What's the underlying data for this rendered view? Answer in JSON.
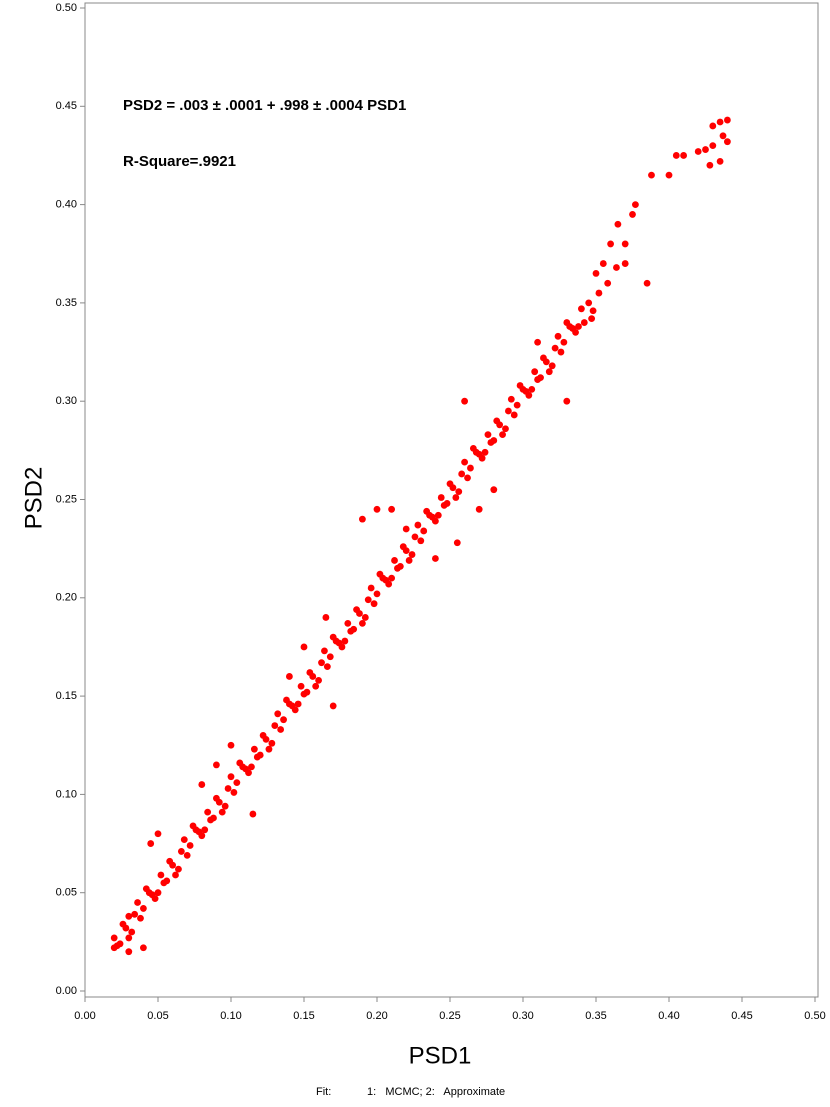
{
  "chart_data": {
    "type": "scatter",
    "color": "#ff0000",
    "annotations": [
      "PSD2 = .003 ± .0001 + .998 ± .0004 PSD1",
      "R-Square=.9921"
    ],
    "xlabel": "PSD1",
    "ylabel": "PSD2",
    "footnote": {
      "label": "Fit:",
      "text": "1:   MCMC; 2:   Approximate"
    },
    "xlim": [
      0,
      0.5
    ],
    "ylim": [
      0,
      0.5
    ],
    "xticks": [
      {
        "value": 0,
        "label": "0.00"
      },
      {
        "value": 0.05,
        "label": "0.05"
      },
      {
        "value": 0.1,
        "label": "0.10"
      },
      {
        "value": 0.15,
        "label": "0.15"
      },
      {
        "value": 0.2,
        "label": "0.20"
      },
      {
        "value": 0.25,
        "label": "0.25"
      },
      {
        "value": 0.3,
        "label": "0.30"
      },
      {
        "value": 0.35,
        "label": "0.35"
      },
      {
        "value": 0.4,
        "label": "0.40"
      },
      {
        "value": 0.45,
        "label": "0.45"
      },
      {
        "value": 0.5,
        "label": "0.50"
      }
    ],
    "yticks": [
      {
        "value": 0,
        "label": "0.00"
      },
      {
        "value": 0.05,
        "label": "0.05"
      },
      {
        "value": 0.1,
        "label": "0.10"
      },
      {
        "value": 0.15,
        "label": "0.15"
      },
      {
        "value": 0.2,
        "label": "0.20"
      },
      {
        "value": 0.25,
        "label": "0.25"
      },
      {
        "value": 0.3,
        "label": "0.30"
      },
      {
        "value": 0.35,
        "label": "0.35"
      },
      {
        "value": 0.4,
        "label": "0.40"
      },
      {
        "value": 0.45,
        "label": "0.45"
      },
      {
        "value": 0.5,
        "label": "0.50"
      }
    ],
    "x": [
      0.02,
      0.024,
      0.028,
      0.032,
      0.036,
      0.04,
      0.044,
      0.048,
      0.052,
      0.056,
      0.06,
      0.064,
      0.068,
      0.072,
      0.076,
      0.08,
      0.084,
      0.088,
      0.092,
      0.096,
      0.1,
      0.104,
      0.108,
      0.112,
      0.116,
      0.12,
      0.124,
      0.128,
      0.132,
      0.136,
      0.14,
      0.144,
      0.148,
      0.152,
      0.156,
      0.16,
      0.164,
      0.168,
      0.172,
      0.176,
      0.18,
      0.184,
      0.188,
      0.192,
      0.196,
      0.2,
      0.204,
      0.208,
      0.212,
      0.216,
      0.22,
      0.224,
      0.228,
      0.232,
      0.236,
      0.24,
      0.244,
      0.248,
      0.252,
      0.256,
      0.26,
      0.264,
      0.268,
      0.272,
      0.276,
      0.28,
      0.284,
      0.288,
      0.292,
      0.296,
      0.3,
      0.304,
      0.308,
      0.312,
      0.316,
      0.32,
      0.324,
      0.328,
      0.332,
      0.336,
      0.34,
      0.022,
      0.026,
      0.03,
      0.034,
      0.038,
      0.042,
      0.046,
      0.05,
      0.054,
      0.058,
      0.062,
      0.066,
      0.07,
      0.074,
      0.078,
      0.082,
      0.086,
      0.09,
      0.094,
      0.098,
      0.102,
      0.106,
      0.11,
      0.114,
      0.118,
      0.122,
      0.126,
      0.13,
      0.134,
      0.138,
      0.142,
      0.146,
      0.15,
      0.154,
      0.158,
      0.162,
      0.166,
      0.17,
      0.174,
      0.178,
      0.182,
      0.186,
      0.19,
      0.194,
      0.198,
      0.202,
      0.206,
      0.21,
      0.214,
      0.218,
      0.222,
      0.226,
      0.23,
      0.234,
      0.238,
      0.242,
      0.246,
      0.25,
      0.254,
      0.258,
      0.262,
      0.266,
      0.27,
      0.274,
      0.278,
      0.282,
      0.286,
      0.29,
      0.294,
      0.298,
      0.302,
      0.306,
      0.31,
      0.314,
      0.318,
      0.322,
      0.326,
      0.33,
      0.334,
      0.338,
      0.43,
      0.435,
      0.44,
      0.437,
      0.44,
      0.43,
      0.425,
      0.435,
      0.428,
      0.405,
      0.41,
      0.42,
      0.4,
      0.388,
      0.377,
      0.375,
      0.365,
      0.37,
      0.385,
      0.36,
      0.355,
      0.35,
      0.345,
      0.358,
      0.364,
      0.37,
      0.352,
      0.348,
      0.342,
      0.347,
      0.2,
      0.21,
      0.22,
      0.24,
      0.19,
      0.165,
      0.17,
      0.15,
      0.14,
      0.09,
      0.115,
      0.05,
      0.045,
      0.04,
      0.03,
      0.02,
      0.03,
      0.255,
      0.27,
      0.1,
      0.08,
      0.31,
      0.33,
      0.26,
      0.28
    ],
    "values": [
      0.027,
      0.024,
      0.032,
      0.03,
      0.045,
      0.042,
      0.05,
      0.047,
      0.059,
      0.056,
      0.064,
      0.062,
      0.077,
      0.074,
      0.082,
      0.079,
      0.091,
      0.088,
      0.096,
      0.094,
      0.109,
      0.106,
      0.114,
      0.111,
      0.123,
      0.12,
      0.128,
      0.126,
      0.141,
      0.138,
      0.146,
      0.143,
      0.155,
      0.152,
      0.16,
      0.158,
      0.173,
      0.17,
      0.178,
      0.175,
      0.187,
      0.184,
      0.192,
      0.19,
      0.205,
      0.202,
      0.21,
      0.207,
      0.219,
      0.216,
      0.224,
      0.222,
      0.237,
      0.234,
      0.242,
      0.239,
      0.251,
      0.248,
      0.256,
      0.254,
      0.269,
      0.266,
      0.274,
      0.271,
      0.283,
      0.28,
      0.288,
      0.286,
      0.301,
      0.298,
      0.306,
      0.303,
      0.315,
      0.312,
      0.32,
      0.318,
      0.333,
      0.33,
      0.338,
      0.335,
      0.347,
      0.023,
      0.034,
      0.027,
      0.039,
      0.037,
      0.052,
      0.049,
      0.05,
      0.055,
      0.066,
      0.059,
      0.071,
      0.069,
      0.084,
      0.081,
      0.082,
      0.087,
      0.098,
      0.091,
      0.103,
      0.101,
      0.116,
      0.113,
      0.114,
      0.119,
      0.13,
      0.123,
      0.135,
      0.133,
      0.148,
      0.145,
      0.146,
      0.151,
      0.162,
      0.155,
      0.167,
      0.165,
      0.18,
      0.177,
      0.178,
      0.183,
      0.194,
      0.187,
      0.199,
      0.197,
      0.212,
      0.209,
      0.21,
      0.215,
      0.226,
      0.219,
      0.231,
      0.229,
      0.244,
      0.241,
      0.242,
      0.247,
      0.258,
      0.251,
      0.263,
      0.261,
      0.276,
      0.273,
      0.274,
      0.279,
      0.29,
      0.283,
      0.295,
      0.293,
      0.308,
      0.305,
      0.306,
      0.311,
      0.322,
      0.315,
      0.327,
      0.325,
      0.34,
      0.337,
      0.338,
      0.44,
      0.442,
      0.443,
      0.435,
      0.432,
      0.43,
      0.428,
      0.422,
      0.42,
      0.425,
      0.425,
      0.427,
      0.415,
      0.415,
      0.4,
      0.395,
      0.39,
      0.38,
      0.36,
      0.38,
      0.37,
      0.365,
      0.35,
      0.36,
      0.368,
      0.37,
      0.355,
      0.346,
      0.34,
      0.342,
      0.245,
      0.245,
      0.235,
      0.22,
      0.24,
      0.19,
      0.145,
      0.175,
      0.16,
      0.115,
      0.09,
      0.08,
      0.075,
      0.022,
      0.02,
      0.022,
      0.038,
      0.228,
      0.245,
      0.125,
      0.105,
      0.33,
      0.3,
      0.3,
      0.255
    ]
  }
}
